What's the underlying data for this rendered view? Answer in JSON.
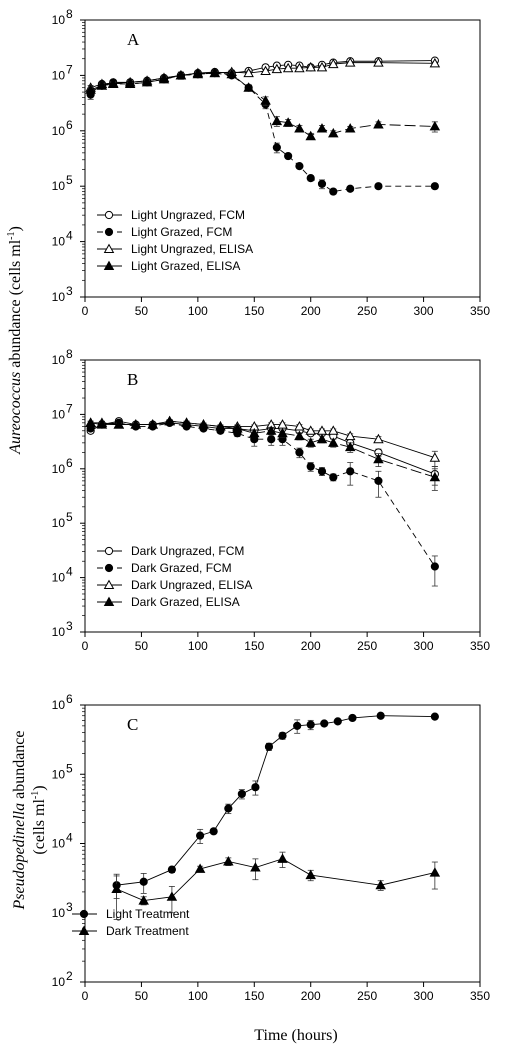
{
  "figure": {
    "ylabel_species_a": "Aureococcus",
    "ylabel_suffix_a": " abundance (cells ml",
    "ylabel_species_c": "Pseudopedinella",
    "ylabel_suffix_c": " abundance",
    "ylabel_units_c": "(cells ml",
    "ylabel_exp": "-1",
    "ylabel_close": ")",
    "xlabel": "Time (hours)"
  },
  "chart_data": [
    {
      "type": "line",
      "panel_label": "A",
      "scale_y": "log",
      "xlim": [
        0,
        350
      ],
      "ylim": [
        1000,
        100000000
      ],
      "x_ticks": [
        0,
        50,
        100,
        150,
        200,
        250,
        300,
        350
      ],
      "y_ticks": [
        3,
        4,
        5,
        6,
        7,
        8
      ],
      "legend_position": "lower-left",
      "series": [
        {
          "name": "Light Ungrazed, FCM",
          "marker": "circle-open",
          "dash": "solid",
          "x": [
            5,
            15,
            25,
            40,
            55,
            70,
            85,
            100,
            115,
            130,
            145,
            160,
            170,
            180,
            190,
            200,
            210,
            220,
            235,
            260,
            310
          ],
          "y": [
            5000000,
            6500000,
            7500000,
            7500000,
            8000000,
            9000000,
            10000000,
            11000000,
            11500000,
            11000000,
            12000000,
            14000000,
            15000000,
            15500000,
            15000000,
            14000000,
            15500000,
            17000000,
            18000000,
            18000000,
            18500000
          ],
          "err": [
            800000,
            600000,
            500000,
            500000,
            500000,
            800000,
            1000000,
            1000000,
            900000,
            900000,
            900000,
            900000,
            900000,
            900000,
            900000,
            900000,
            900000,
            900000,
            900000,
            900000,
            900000
          ]
        },
        {
          "name": "Light Grazed, FCM",
          "marker": "circle-filled",
          "dash": "dashed",
          "x": [
            5,
            15,
            25,
            40,
            55,
            70,
            85,
            100,
            115,
            130,
            145,
            160,
            170,
            180,
            190,
            200,
            210,
            220,
            235,
            260,
            310
          ],
          "y": [
            4500000,
            7000000,
            7200000,
            7000000,
            7500000,
            8500000,
            10000000,
            10500000,
            11000000,
            10000000,
            6000000,
            3000000,
            500000,
            350000,
            230000,
            140000,
            110000,
            80000,
            90000,
            100000,
            100000
          ],
          "err": [
            800000,
            600000,
            600000,
            500000,
            500000,
            800000,
            1500000,
            1000000,
            900000,
            900000,
            600000,
            500000,
            100000,
            30000,
            20000,
            15000,
            20000,
            8000,
            8000,
            8000,
            10000
          ]
        },
        {
          "name": "Light Ungrazed, ELISA",
          "marker": "triangle-open",
          "dash": "solid",
          "x": [
            5,
            15,
            25,
            40,
            55,
            70,
            85,
            100,
            115,
            130,
            145,
            160,
            170,
            180,
            190,
            200,
            210,
            220,
            235,
            260,
            310
          ],
          "y": [
            6000000,
            7000000,
            7200000,
            7500000,
            8000000,
            9000000,
            10000000,
            11000000,
            11000000,
            11500000,
            11000000,
            12000000,
            13000000,
            13500000,
            13500000,
            14000000,
            14000000,
            16000000,
            17000000,
            17000000,
            16500000
          ],
          "err": [
            600000,
            600000,
            500000,
            500000,
            500000,
            800000,
            900000,
            900000,
            900000,
            900000,
            900000,
            900000,
            900000,
            900000,
            900000,
            900000,
            900000,
            900000,
            900000,
            900000,
            900000
          ]
        },
        {
          "name": "Light Grazed, ELISA",
          "marker": "triangle-filled",
          "dash": "longdash",
          "x": [
            5,
            15,
            25,
            40,
            55,
            70,
            85,
            100,
            115,
            130,
            145,
            160,
            170,
            180,
            190,
            200,
            210,
            220,
            235,
            260,
            310
          ],
          "y": [
            5500000,
            6500000,
            7000000,
            7000000,
            7500000,
            8500000,
            10000000,
            10500000,
            11000000,
            10500000,
            6000000,
            3500000,
            1500000,
            1400000,
            1100000,
            800000,
            1100000,
            900000,
            1100000,
            1300000,
            1200000
          ],
          "err": [
            600000,
            600000,
            500000,
            500000,
            500000,
            800000,
            900000,
            900000,
            900000,
            900000,
            800000,
            600000,
            300000,
            200000,
            150000,
            100000,
            150000,
            100000,
            100000,
            150000,
            250000
          ]
        }
      ]
    },
    {
      "type": "line",
      "panel_label": "B",
      "scale_y": "log",
      "xlim": [
        0,
        350
      ],
      "ylim": [
        1000,
        100000000
      ],
      "x_ticks": [
        0,
        50,
        100,
        150,
        200,
        250,
        300,
        350
      ],
      "y_ticks": [
        3,
        4,
        5,
        6,
        7,
        8
      ],
      "legend_position": "lower-left",
      "series": [
        {
          "name": "Dark Ungrazed, FCM",
          "marker": "circle-open",
          "dash": "solid",
          "x": [
            5,
            15,
            30,
            45,
            60,
            75,
            90,
            105,
            120,
            135,
            150,
            165,
            175,
            190,
            200,
            210,
            220,
            235,
            260,
            310
          ],
          "y": [
            5000000,
            6500000,
            7500000,
            6500000,
            6500000,
            7000000,
            6500000,
            6000000,
            5500000,
            5500000,
            5000000,
            5500000,
            5500000,
            5000000,
            4500000,
            4500000,
            4000000,
            3000000,
            2000000,
            800000
          ],
          "err": [
            500000,
            500000,
            500000,
            400000,
            400000,
            400000,
            400000,
            400000,
            400000,
            400000,
            400000,
            400000,
            400000,
            400000,
            400000,
            400000,
            400000,
            400000,
            300000,
            300000
          ]
        },
        {
          "name": "Dark Grazed, FCM",
          "marker": "circle-filled",
          "dash": "dashed",
          "x": [
            5,
            15,
            30,
            45,
            60,
            75,
            90,
            105,
            120,
            135,
            150,
            165,
            175,
            190,
            200,
            210,
            220,
            235,
            260,
            310
          ],
          "y": [
            5500000,
            6500000,
            7000000,
            6000000,
            6000000,
            7000000,
            6000000,
            5500000,
            5000000,
            4500000,
            3500000,
            3500000,
            3500000,
            2000000,
            1100000,
            900000,
            700000,
            900000,
            600000,
            16000
          ],
          "err": [
            500000,
            500000,
            500000,
            400000,
            400000,
            500000,
            400000,
            400000,
            500000,
            600000,
            900000,
            800000,
            800000,
            400000,
            200000,
            150000,
            100000,
            400000,
            300000,
            9000
          ]
        },
        {
          "name": "Dark Ungrazed, ELISA",
          "marker": "triangle-open",
          "dash": "solid",
          "x": [
            5,
            15,
            30,
            45,
            60,
            75,
            90,
            105,
            120,
            135,
            150,
            165,
            175,
            190,
            200,
            210,
            220,
            235,
            260,
            310
          ],
          "y": [
            7000000,
            7000000,
            6500000,
            6500000,
            6500000,
            7500000,
            7000000,
            6500000,
            6000000,
            6000000,
            6000000,
            6500000,
            6500000,
            6000000,
            5000000,
            5000000,
            5000000,
            4000000,
            3500000,
            1600000
          ],
          "err": [
            500000,
            500000,
            400000,
            400000,
            400000,
            500000,
            500000,
            400000,
            400000,
            400000,
            400000,
            500000,
            500000,
            500000,
            400000,
            400000,
            400000,
            400000,
            400000,
            500000
          ]
        },
        {
          "name": "Dark Grazed, ELISA",
          "marker": "triangle-filled",
          "dash": "longdash",
          "x": [
            5,
            15,
            30,
            45,
            60,
            75,
            90,
            105,
            120,
            135,
            150,
            165,
            175,
            190,
            200,
            210,
            220,
            235,
            260,
            310
          ],
          "y": [
            7000000,
            6500000,
            6500000,
            6500000,
            6500000,
            7500000,
            7000000,
            6500000,
            6000000,
            5500000,
            4500000,
            5000000,
            4500000,
            4000000,
            3000000,
            3500000,
            3000000,
            2500000,
            1500000,
            700000
          ],
          "err": [
            500000,
            500000,
            400000,
            400000,
            400000,
            500000,
            500000,
            400000,
            400000,
            500000,
            600000,
            800000,
            700000,
            600000,
            500000,
            500000,
            500000,
            500000,
            400000,
            300000
          ]
        }
      ]
    },
    {
      "type": "line",
      "panel_label": "C",
      "scale_y": "log",
      "xlim": [
        0,
        350
      ],
      "ylim": [
        100,
        1000000
      ],
      "x_ticks": [
        0,
        50,
        100,
        150,
        200,
        250,
        300,
        350
      ],
      "y_ticks": [
        2,
        3,
        4,
        5,
        6
      ],
      "legend_position": "lower-left",
      "series": [
        {
          "name": "Light Treatment",
          "marker": "circle-filled",
          "dash": "solid",
          "x": [
            28,
            52,
            77,
            102,
            114,
            127,
            139,
            151,
            163,
            175,
            188,
            200,
            212,
            224,
            237,
            262,
            310
          ],
          "y": [
            2500,
            2800,
            4200,
            13000,
            15000,
            32000,
            52000,
            65000,
            250000,
            360000,
            500000,
            520000,
            540000,
            580000,
            650000,
            700000,
            680000
          ],
          "err": [
            900,
            900,
            400,
            3000,
            1000,
            5000,
            8000,
            15000,
            30000,
            40000,
            110000,
            80000,
            40000,
            40000,
            50000,
            40000,
            40000
          ]
        },
        {
          "name": "Dark Treatment",
          "marker": "triangle-filled",
          "dash": "solid",
          "x": [
            28,
            52,
            77,
            102,
            127,
            151,
            175,
            200,
            262,
            310
          ],
          "y": [
            2200,
            1500,
            1700,
            4300,
            5500,
            4500,
            6000,
            3500,
            2500,
            3800
          ],
          "err": [
            1400,
            200,
            700,
            400,
            700,
            1500,
            1500,
            600,
            400,
            1600
          ]
        }
      ]
    }
  ]
}
